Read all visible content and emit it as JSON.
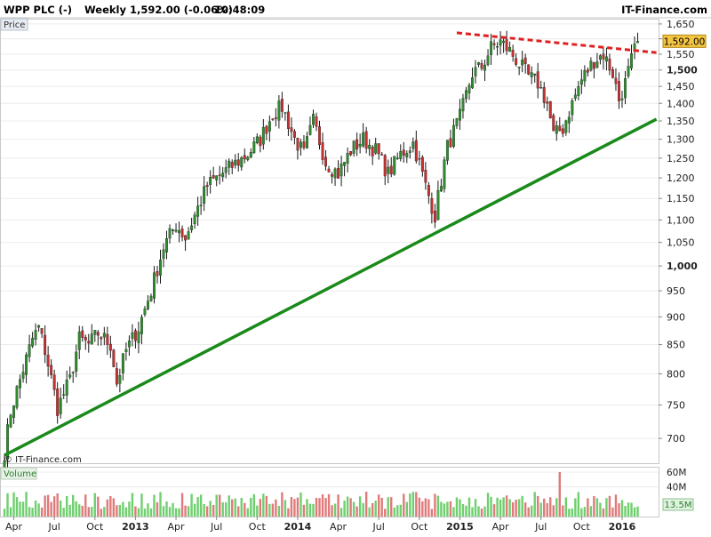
{
  "header": {
    "instrument": "WPP PLC (-)",
    "period": "Weekly",
    "quote": "1,592.00 (-0.06%)",
    "time": "10:48:09",
    "brand": "IT-Finance.com"
  },
  "price_panel": {
    "label": "Price",
    "watermark": "© IT-Finance.com"
  },
  "volume_panel": {
    "label": "Volume",
    "current_label": "13.5M"
  },
  "colors": {
    "up": "#2e8b2e",
    "down": "#c43030",
    "support": "#1a8a1a",
    "resistance": "#e02020",
    "last_price_bg": "#f5c542"
  },
  "chart_data": [
    {
      "type": "candlestick",
      "title": "WPP PLC (-) Weekly",
      "y_scale": "log",
      "ylim": [
        665,
        1665
      ],
      "y_ticks": [
        {
          "v": 1650,
          "t": "1,650"
        },
        {
          "v": 1600,
          "t": "1,600"
        },
        {
          "v": 1550,
          "t": "1,550"
        },
        {
          "v": 1500,
          "t": "1,500",
          "bold": true
        },
        {
          "v": 1450,
          "t": "1,450"
        },
        {
          "v": 1400,
          "t": "1,400"
        },
        {
          "v": 1350,
          "t": "1,350"
        },
        {
          "v": 1300,
          "t": "1,300"
        },
        {
          "v": 1250,
          "t": "1,250"
        },
        {
          "v": 1200,
          "t": "1,200"
        },
        {
          "v": 1150,
          "t": "1,150"
        },
        {
          "v": 1100,
          "t": "1,100"
        },
        {
          "v": 1050,
          "t": "1,050"
        },
        {
          "v": 1000,
          "t": "1,000",
          "bold": true
        },
        {
          "v": 950,
          "t": "950"
        },
        {
          "v": 900,
          "t": "900"
        },
        {
          "v": 850,
          "t": "850"
        },
        {
          "v": 800,
          "t": "800"
        },
        {
          "v": 750,
          "t": "750"
        },
        {
          "v": 700,
          "t": "700"
        }
      ],
      "x_ticks": [
        {
          "week": 3,
          "t": "Apr"
        },
        {
          "week": 16,
          "t": "Jul"
        },
        {
          "week": 29,
          "t": "Oct"
        },
        {
          "week": 42,
          "t": "2013",
          "bold": true
        },
        {
          "week": 55,
          "t": "Apr"
        },
        {
          "week": 68,
          "t": "Jul"
        },
        {
          "week": 81,
          "t": "Oct"
        },
        {
          "week": 94,
          "t": "2014",
          "bold": true
        },
        {
          "week": 107,
          "t": "Apr"
        },
        {
          "week": 120,
          "t": "Jul"
        },
        {
          "week": 133,
          "t": "Oct"
        },
        {
          "week": 146,
          "t": "2015",
          "bold": true
        },
        {
          "week": 159,
          "t": "Apr"
        },
        {
          "week": 172,
          "t": "Jul"
        },
        {
          "week": 185,
          "t": "Oct"
        },
        {
          "week": 198,
          "t": "2016",
          "bold": true
        }
      ],
      "last_price": 1592,
      "last_price_label": "1,592.00",
      "price_anchors": [
        [
          0,
          680
        ],
        [
          2,
          740
        ],
        [
          5,
          790
        ],
        [
          9,
          860
        ],
        [
          11,
          880
        ],
        [
          13,
          840
        ],
        [
          17,
          745
        ],
        [
          21,
          790
        ],
        [
          24,
          860
        ],
        [
          27,
          850
        ],
        [
          30,
          870
        ],
        [
          34,
          850
        ],
        [
          36,
          785
        ],
        [
          39,
          840
        ],
        [
          43,
          880
        ],
        [
          47,
          950
        ],
        [
          51,
          1040
        ],
        [
          55,
          1090
        ],
        [
          58,
          1060
        ],
        [
          61,
          1110
        ],
        [
          65,
          1180
        ],
        [
          68,
          1200
        ],
        [
          73,
          1230
        ],
        [
          78,
          1260
        ],
        [
          82,
          1300
        ],
        [
          86,
          1370
        ],
        [
          89,
          1390
        ],
        [
          93,
          1300
        ],
        [
          96,
          1260
        ],
        [
          99,
          1350
        ],
        [
          103,
          1240
        ],
        [
          107,
          1210
        ],
        [
          111,
          1270
        ],
        [
          115,
          1300
        ],
        [
          119,
          1270
        ],
        [
          123,
          1210
        ],
        [
          127,
          1260
        ],
        [
          131,
          1290
        ],
        [
          135,
          1180
        ],
        [
          138,
          1110
        ],
        [
          142,
          1280
        ],
        [
          146,
          1360
        ],
        [
          150,
          1490
        ],
        [
          153,
          1510
        ],
        [
          156,
          1570
        ],
        [
          159,
          1590
        ],
        [
          162,
          1560
        ],
        [
          165,
          1520
        ],
        [
          168,
          1480
        ],
        [
          171,
          1460
        ],
        [
          174,
          1400
        ],
        [
          176,
          1310
        ],
        [
          179,
          1330
        ],
        [
          182,
          1400
        ],
        [
          185,
          1470
        ],
        [
          189,
          1530
        ],
        [
          192,
          1550
        ],
        [
          195,
          1490
        ],
        [
          197,
          1410
        ],
        [
          199,
          1460
        ],
        [
          201,
          1530
        ],
        [
          203,
          1592
        ]
      ],
      "trendlines": [
        {
          "name": "support",
          "from": [
            0,
            676
          ],
          "to": [
            209,
            1355
          ]
        },
        {
          "name": "resistance",
          "from": [
            145,
            1620
          ],
          "to": [
            209,
            1555
          ]
        }
      ]
    },
    {
      "type": "bar",
      "title": "Volume",
      "y_ticks": [
        {
          "v": 60,
          "t": "60M"
        },
        {
          "v": 40,
          "t": "40M"
        }
      ],
      "ylim": [
        0,
        66
      ],
      "values_millions_range": [
        8,
        60
      ]
    }
  ]
}
